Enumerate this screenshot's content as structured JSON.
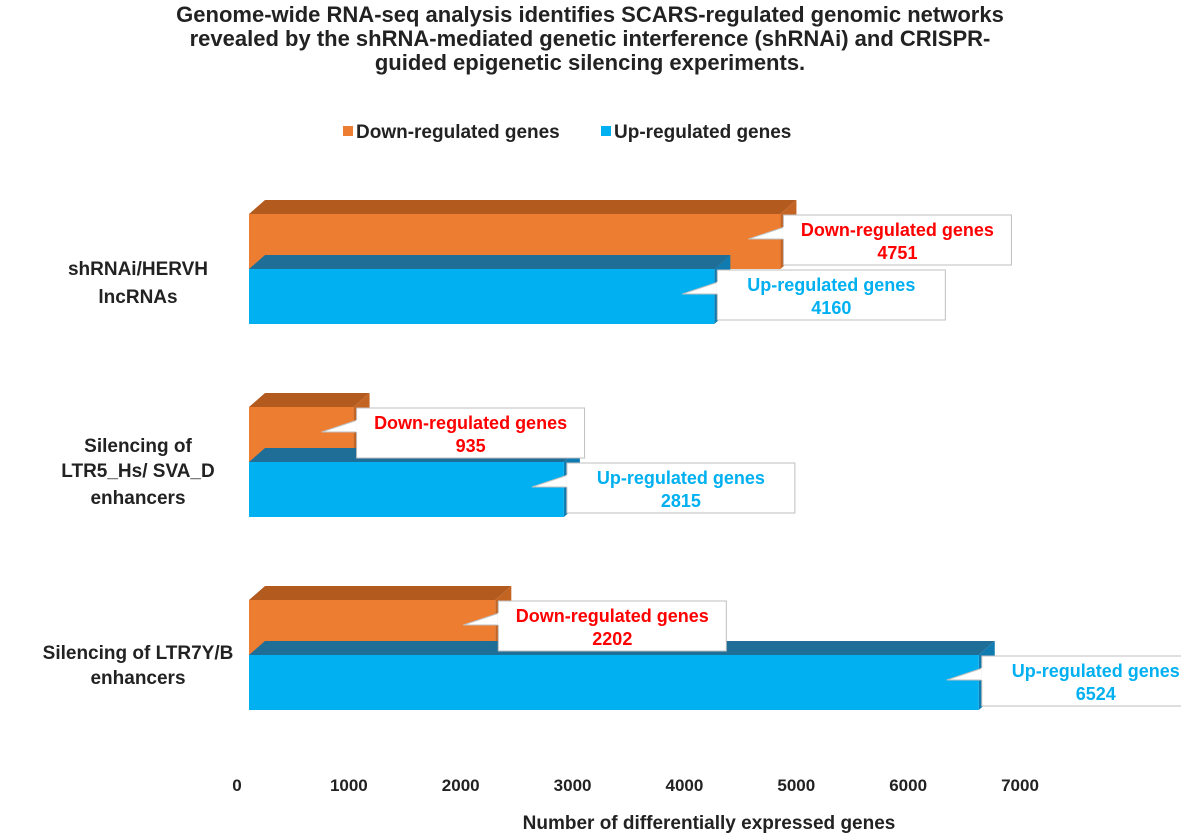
{
  "chart_data": {
    "type": "bar",
    "orientation": "horizontal",
    "style": "3d",
    "title_lines": [
      "Genome-wide RNA-seq analysis identifies SCARS-regulated genomic networks",
      "revealed by the shRNA-mediated genetic interference (shRNAi) and CRISPR-",
      "guided epigenetic silencing experiments."
    ],
    "categories": [
      {
        "lines": [
          "shRNAi/HERVH",
          "lncRNAs"
        ]
      },
      {
        "lines": [
          "Silencing of",
          "LTR5_Hs/ SVA_D",
          "enhancers"
        ]
      },
      {
        "lines": [
          "Silencing of  LTR7Y/B",
          "enhancers"
        ]
      }
    ],
    "series": [
      {
        "name": "Down-regulated genes",
        "color": "#ED7D31",
        "top_color": "#B35A1F",
        "label_color": "#FF0000",
        "values": [
          4751,
          935,
          2202
        ]
      },
      {
        "name": "Up-regulated genes",
        "color": "#00B0F0",
        "top_color": "#1F6E98",
        "label_color": "#00B0F0",
        "values": [
          4160,
          2815,
          6524
        ]
      }
    ],
    "xlabel": "Number of differentially  expressed genes",
    "ylabel": "",
    "xlim": [
      0,
      7000
    ],
    "xticks": [
      0,
      1000,
      2000,
      3000,
      4000,
      5000,
      6000,
      7000
    ],
    "legend_position": "top-center",
    "grid": false
  }
}
